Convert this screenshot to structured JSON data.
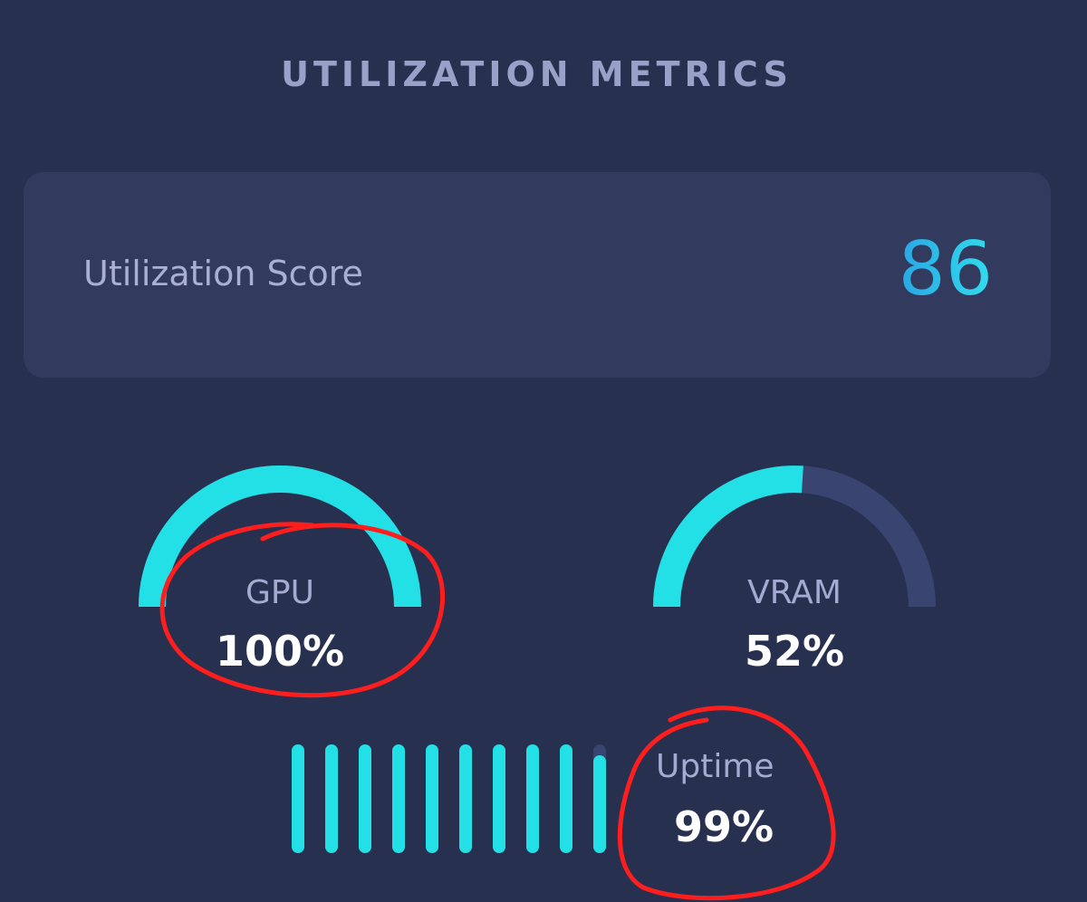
{
  "header": {
    "title": "UTILIZATION METRICS"
  },
  "score": {
    "label": "Utilization Score",
    "value": "86"
  },
  "gauges": [
    {
      "label": "GPU",
      "value_text": "100%",
      "fraction": 1.0
    },
    {
      "label": "VRAM",
      "value_text": "52%",
      "fraction": 0.52
    }
  ],
  "uptime": {
    "label": "Uptime",
    "value_text": "99%",
    "fraction": 0.99,
    "bar_count": 10
  },
  "colors": {
    "background": "#28304f",
    "card": "#323a5d",
    "accent": "#22e0e6",
    "track": "#3a4470",
    "annotation": "#ff1e1e"
  }
}
